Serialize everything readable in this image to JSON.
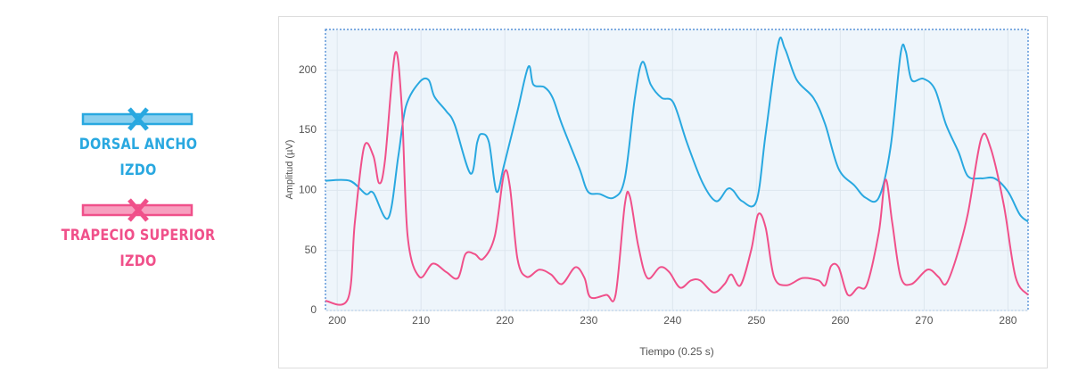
{
  "chart_data": {
    "type": "line",
    "x_label": "Tiempo (0.25 s)",
    "y_label": "Amplitud (µV)",
    "xlim": [
      198.6,
      282.4
    ],
    "ylim": [
      0,
      234
    ],
    "xticks": [
      200,
      210,
      220,
      230,
      240,
      250,
      260,
      270,
      280
    ],
    "yticks": [
      0,
      50,
      100,
      150,
      200
    ],
    "grid": true,
    "series": [
      {
        "name": "DORSAL ANCHO\nIZDO",
        "color": "#29a8e0",
        "x": [
          198.6,
          201.5,
          203.4,
          204.3,
          206.1,
          207.3,
          208.2,
          209.8,
          210.9,
          211.6,
          213,
          214,
          215.9,
          216.7,
          217.2,
          218.1,
          219,
          219.9,
          221.5,
          222.8,
          223.4,
          224.7,
          225.7,
          226.8,
          228.9,
          229.9,
          231.3,
          233,
          234.3,
          235.5,
          236.4,
          237.4,
          238.7,
          240.1,
          241.7,
          243.6,
          245.2,
          246.5,
          247.2,
          248.3,
          250,
          251.1,
          252.6,
          253.4,
          254.8,
          256.8,
          258.2,
          259.8,
          261.7,
          263,
          264.6,
          266,
          267.2,
          267.8,
          268.5,
          269.9,
          271.3,
          272.6,
          274.1,
          275.2,
          276.8,
          278.4,
          280,
          281.4,
          282.4
        ],
        "values": [
          108,
          108,
          97,
          98,
          77,
          129,
          170,
          190,
          192,
          178,
          166,
          155,
          114,
          140,
          147,
          140,
          99,
          121,
          166,
          203,
          188,
          186,
          177,
          155,
          118,
          99,
          97,
          94,
          110,
          177,
          207,
          188,
          177,
          173,
          140,
          106,
          91,
          101,
          100,
          91,
          91,
          147,
          222,
          218,
          192,
          177,
          155,
          118,
          104,
          94,
          94,
          136,
          214,
          216,
          192,
          193,
          184,
          155,
          132,
          112,
          110,
          110,
          99,
          80,
          74
        ]
      },
      {
        "name": "TRAPECIO SUPERIOR\nIZDO",
        "color": "#f0508a",
        "x": [
          198.6,
          201.3,
          202.1,
          203.2,
          204.3,
          205,
          205.7,
          206.9,
          207.7,
          208.4,
          209.8,
          211.4,
          213,
          214.4,
          215.3,
          216.4,
          217.4,
          218.8,
          219.9,
          220.6,
          221.5,
          222.6,
          224.1,
          225.5,
          226.8,
          228.4,
          229.5,
          230.2,
          232.1,
          233.2,
          234.3,
          234.9,
          235.9,
          237,
          238.5,
          239.6,
          240.9,
          242.2,
          243.3,
          244.9,
          246.2,
          247,
          248.1,
          249.4,
          250.2,
          251.1,
          252.1,
          253.6,
          255.5,
          257.4,
          258.2,
          258.9,
          259.8,
          260.9,
          262.1,
          263.2,
          264.6,
          265.4,
          266.2,
          267.2,
          268.5,
          270.4,
          271.7,
          272.6,
          273.8,
          275.2,
          276.8,
          277.9,
          279.5,
          280.9,
          282.4
        ],
        "values": [
          8,
          10,
          73,
          136,
          129,
          106,
          125,
          214,
          170,
          62,
          28,
          39,
          32,
          27,
          47,
          47,
          43,
          62,
          114,
          103,
          43,
          28,
          34,
          30,
          22,
          36,
          27,
          11,
          13,
          13,
          88,
          95,
          54,
          27,
          36,
          32,
          19,
          25,
          25,
          15,
          22,
          30,
          21,
          51,
          80,
          69,
          28,
          21,
          27,
          25,
          21,
          37,
          36,
          13,
          19,
          22,
          65,
          109,
          73,
          28,
          22,
          34,
          28,
          22,
          43,
          80,
          143,
          136,
          88,
          28,
          13
        ]
      }
    ]
  }
}
